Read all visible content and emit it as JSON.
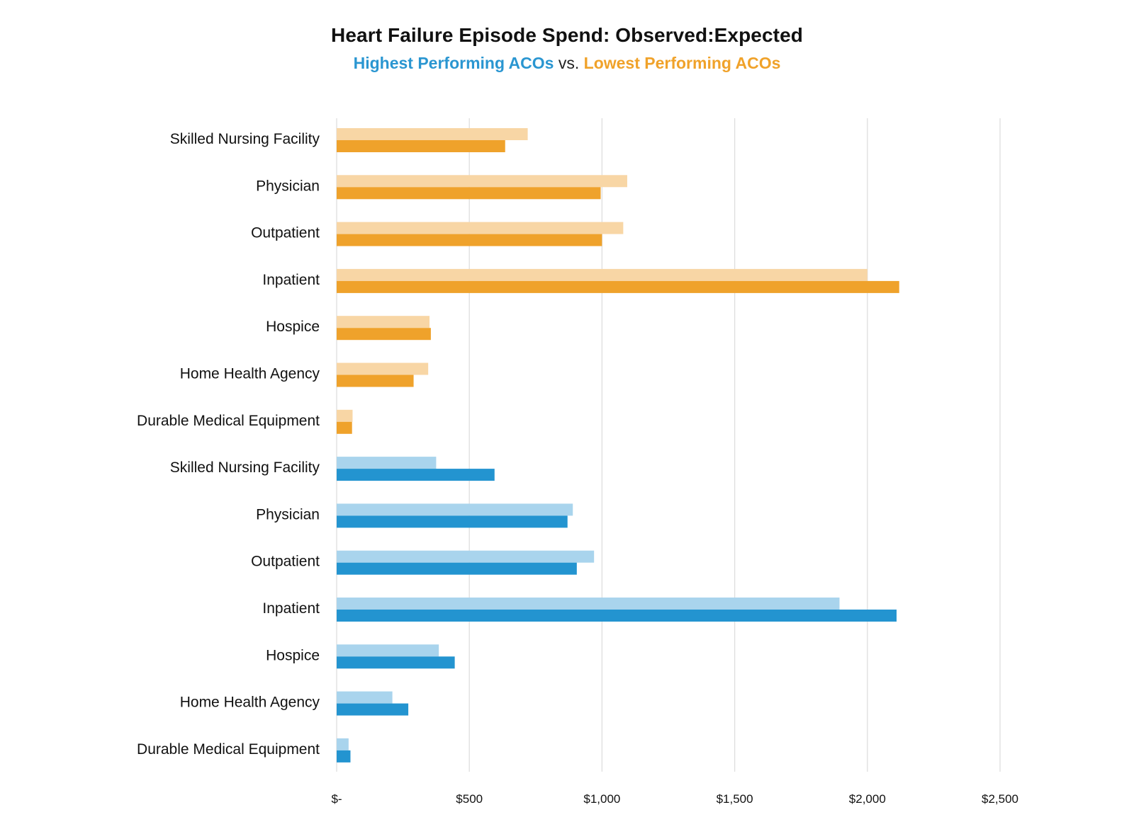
{
  "chart_data": {
    "type": "bar",
    "orientation": "horizontal",
    "title": "Heart Failure Episode Spend: Observed:Expected",
    "subtitle": {
      "high": "Highest Performing ACOs",
      "vs": "vs.",
      "low": "Lowest Performing ACOs"
    },
    "x_ticks": [
      "$-",
      "$500",
      "$1,000",
      "$1,500",
      "$2,000",
      "$2,500"
    ],
    "xlim": [
      0,
      2500
    ],
    "grid": true,
    "groups": [
      {
        "name": "Lowest Performing ACOs",
        "colors": {
          "light": "#f8d6a5",
          "dark": "#efa22b"
        },
        "categories": [
          "Skilled Nursing Facility",
          "Physician",
          "Outpatient",
          "Inpatient",
          "Hospice",
          "Home Health Agency",
          "Durable Medical Equipment"
        ],
        "light_values": [
          720,
          1095,
          1080,
          2000,
          350,
          345,
          60
        ],
        "dark_values": [
          635,
          995,
          1000,
          2120,
          355,
          290,
          58
        ]
      },
      {
        "name": "Highest Performing ACOs",
        "colors": {
          "light": "#a9d4ed",
          "dark": "#2394d0"
        },
        "categories": [
          "Skilled Nursing Facility",
          "Physician",
          "Outpatient",
          "Inpatient",
          "Hospice",
          "Home Health Agency",
          "Durable Medical Equipment"
        ],
        "light_values": [
          375,
          890,
          970,
          1895,
          385,
          210,
          45
        ],
        "dark_values": [
          595,
          870,
          905,
          2110,
          445,
          270,
          52
        ]
      }
    ]
  }
}
